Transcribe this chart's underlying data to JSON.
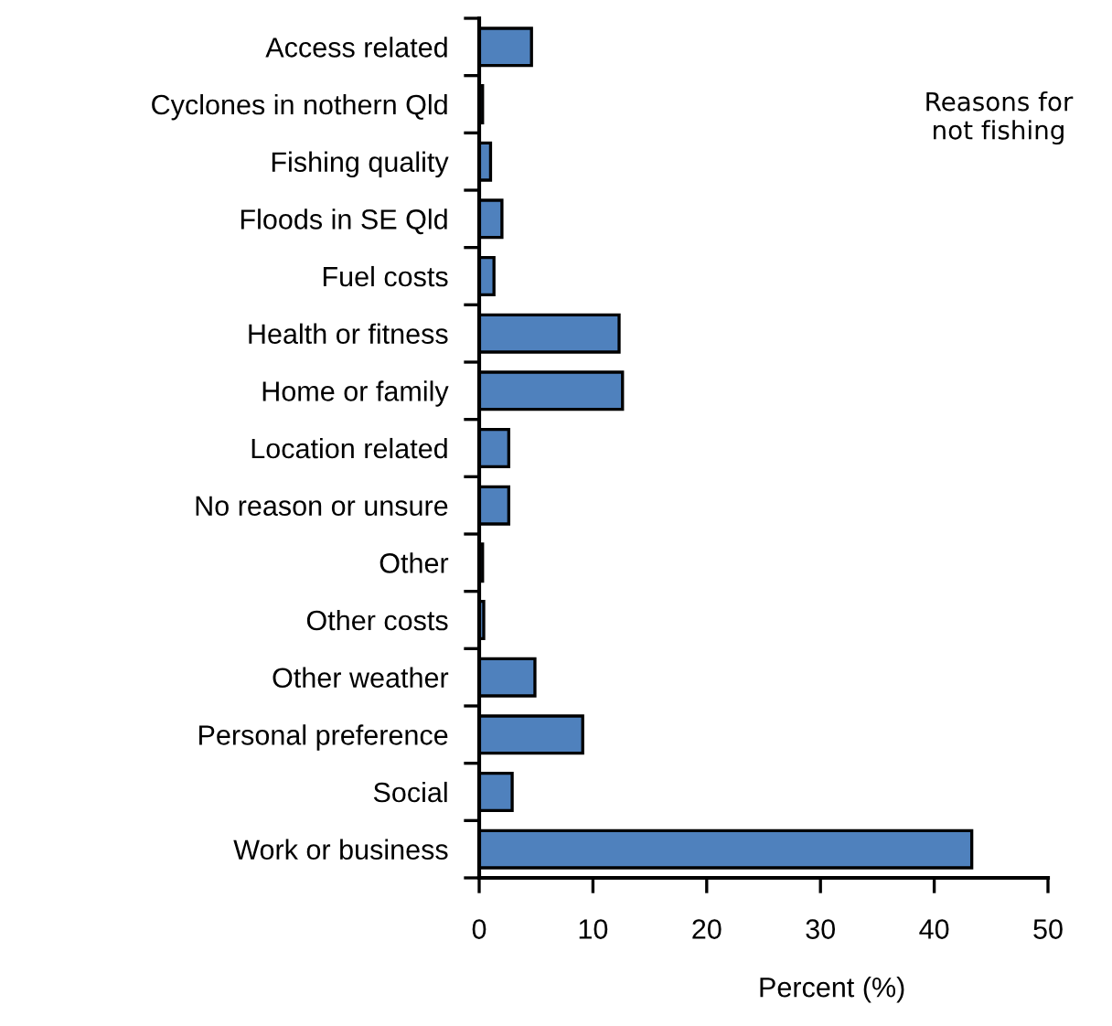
{
  "chart_data": {
    "type": "bar",
    "orientation": "horizontal",
    "title": "Reasons for\nnot fishing",
    "xlabel": "Percent (%)",
    "categories": [
      "Access related",
      "Cyclones in nothern Qld",
      "Fishing quality",
      "Floods in SE Qld",
      "Fuel costs",
      "Health or fitness",
      "Home or family",
      "Location related",
      "No reason or unsure",
      "Other",
      "Other costs",
      "Other weather",
      "Personal preference",
      "Social",
      "Work or business"
    ],
    "values": [
      4.6,
      0.3,
      1.0,
      2.0,
      1.3,
      12.3,
      12.6,
      2.6,
      2.6,
      0.3,
      0.4,
      4.9,
      9.1,
      2.9,
      43.3
    ],
    "color": "#4f81bd",
    "xlim": [
      0,
      50
    ],
    "xticks": [
      0,
      10,
      20,
      30,
      40,
      50
    ],
    "grid": false,
    "legend": false
  }
}
